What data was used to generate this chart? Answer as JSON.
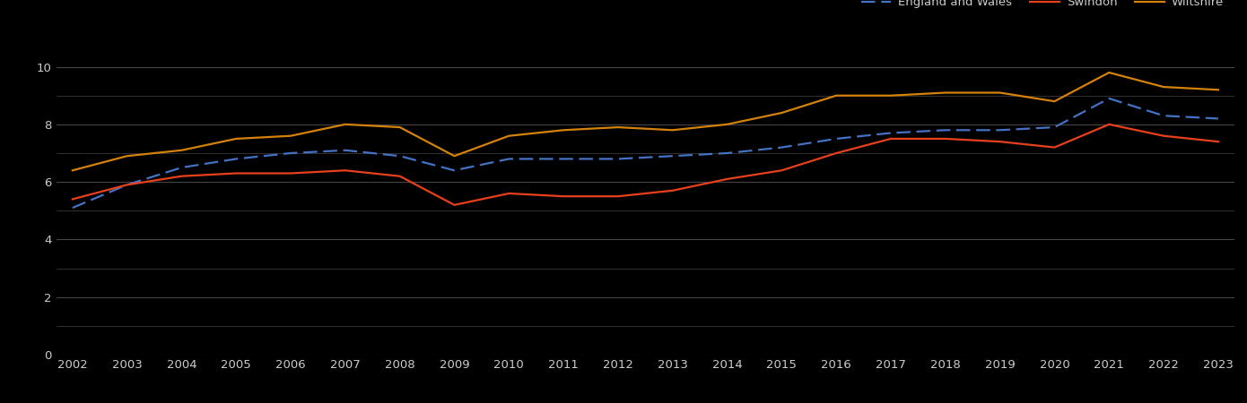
{
  "years": [
    2002,
    2003,
    2004,
    2005,
    2006,
    2007,
    2008,
    2009,
    2010,
    2011,
    2012,
    2013,
    2014,
    2015,
    2016,
    2017,
    2018,
    2019,
    2020,
    2021,
    2022,
    2023
  ],
  "england_wales": [
    5.1,
    5.9,
    6.5,
    6.8,
    7.0,
    7.1,
    6.9,
    6.4,
    6.8,
    6.8,
    6.8,
    6.9,
    7.0,
    7.2,
    7.5,
    7.7,
    7.8,
    7.8,
    7.9,
    8.9,
    8.3,
    8.2
  ],
  "swindon": [
    5.4,
    5.9,
    6.2,
    6.3,
    6.3,
    6.4,
    6.2,
    5.2,
    5.6,
    5.5,
    5.5,
    5.7,
    6.1,
    6.4,
    7.0,
    7.5,
    7.5,
    7.4,
    7.2,
    8.0,
    7.6,
    7.4
  ],
  "wiltshire": [
    6.4,
    6.9,
    7.1,
    7.5,
    7.6,
    8.0,
    7.9,
    6.9,
    7.6,
    7.8,
    7.9,
    7.8,
    8.0,
    8.4,
    9.0,
    9.0,
    9.1,
    9.1,
    8.8,
    9.8,
    9.3,
    9.2
  ],
  "england_wales_color": "#4472c4",
  "swindon_color": "#e8401c",
  "wiltshire_color": "#d4820a",
  "background_color": "#000000",
  "text_color": "#cccccc",
  "grid_color": "#444444",
  "ylim": [
    0,
    10.5
  ],
  "yticks_major": [
    0,
    2,
    4,
    6,
    8,
    10
  ],
  "yticks_minor": [
    1,
    3,
    5,
    7,
    9
  ],
  "legend_labels": [
    "England and Wales",
    "Swindon",
    "Wiltshire"
  ]
}
